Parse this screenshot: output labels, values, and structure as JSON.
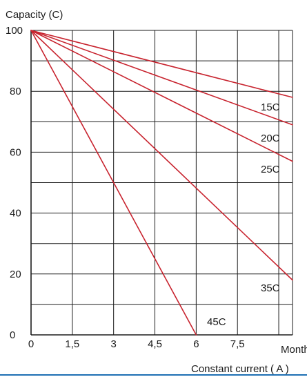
{
  "chart_data": {
    "type": "line",
    "ylabel": "Capacity (C)",
    "xlabel_unit": "Month",
    "xlabel": "Constant current ( A )",
    "xlim": [
      0,
      9.5
    ],
    "ylim": [
      0,
      100
    ],
    "x_ticks": [
      0,
      1.5,
      3,
      4.5,
      6,
      7.5
    ],
    "x_tick_labels": [
      "0",
      "1,5",
      "3",
      "4,5",
      "6",
      "7,5"
    ],
    "y_ticks": [
      0,
      20,
      40,
      60,
      80,
      100
    ],
    "y_tick_labels": [
      "0",
      "20",
      "40",
      "60",
      "80",
      "100"
    ],
    "grid": true,
    "series": [
      {
        "name": "15C",
        "points": [
          [
            0,
            100
          ],
          [
            9.5,
            78
          ]
        ]
      },
      {
        "name": "20C",
        "points": [
          [
            0,
            100
          ],
          [
            9.5,
            69
          ]
        ]
      },
      {
        "name": "25C",
        "points": [
          [
            0,
            100
          ],
          [
            9.5,
            57
          ]
        ]
      },
      {
        "name": "35C",
        "points": [
          [
            0,
            100
          ],
          [
            9.5,
            18
          ]
        ]
      },
      {
        "name": "45C",
        "points": [
          [
            0,
            100
          ],
          [
            6,
            0
          ]
        ]
      }
    ],
    "line_color": "#c8242f",
    "grid_color": "#1a1a1a",
    "bottom_rule_color": "#1d6fb3"
  }
}
